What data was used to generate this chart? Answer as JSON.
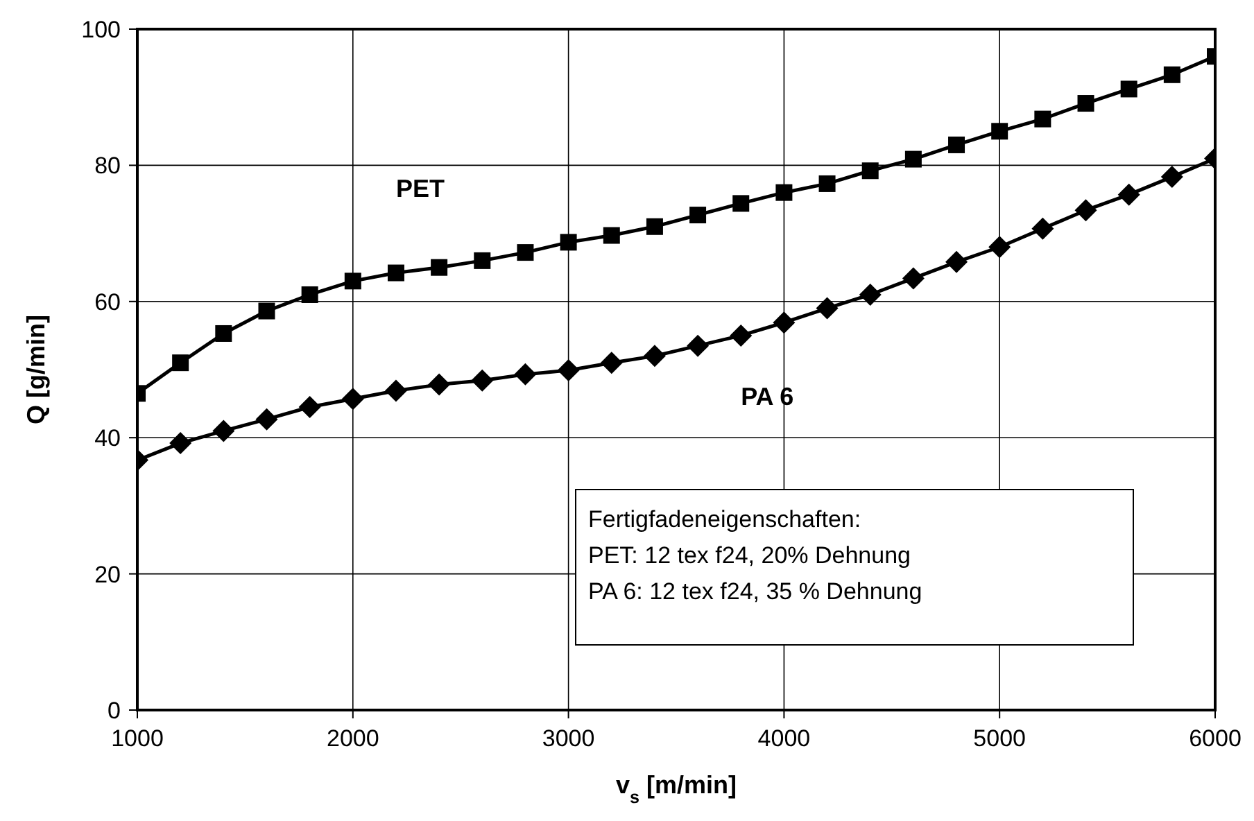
{
  "chart_data": {
    "type": "line",
    "xlabel": "v$_{s}$  [m/min]",
    "ylabel": "Q [g/min]",
    "x": [
      1000,
      1200,
      1400,
      1600,
      1800,
      2000,
      2200,
      2400,
      2600,
      2800,
      3000,
      3200,
      3400,
      3600,
      3800,
      4000,
      4200,
      4400,
      4600,
      4800,
      5000,
      5200,
      5400,
      5600,
      5800,
      6000
    ],
    "series": [
      {
        "name": "PET",
        "color": "#000000",
        "marker": "square",
        "values": [
          46.5,
          51,
          55.3,
          58.6,
          61,
          63,
          64.2,
          65,
          66,
          67.2,
          68.7,
          69.7,
          71,
          72.7,
          74.4,
          76,
          77.3,
          79.2,
          80.9,
          83,
          85,
          86.8,
          89.1,
          91.2,
          93.3,
          96
        ]
      },
      {
        "name": "PA 6",
        "color": "#000000",
        "marker": "diamond",
        "values": [
          36.7,
          39.2,
          41,
          42.7,
          44.5,
          45.7,
          46.9,
          47.8,
          48.4,
          49.3,
          49.9,
          51,
          52,
          53.5,
          55,
          56.9,
          59,
          61,
          63.4,
          65.8,
          68,
          70.7,
          73.4,
          75.7,
          78.3,
          81
        ]
      }
    ],
    "xlim": [
      1000,
      6000
    ],
    "xticks": [
      1000,
      2000,
      3000,
      4000,
      5000,
      6000
    ],
    "ylim": [
      0,
      100
    ],
    "yticks": [
      0,
      20,
      40,
      60,
      80,
      100
    ],
    "grid": true,
    "legend": false,
    "line_style": "solid",
    "annotations": [
      "Fertigfadeneigenschaften:",
      "PET:  12 tex f24, 20% Dehnung",
      "PA 6: 12 tex f24, 35 % Dehnung"
    ]
  }
}
